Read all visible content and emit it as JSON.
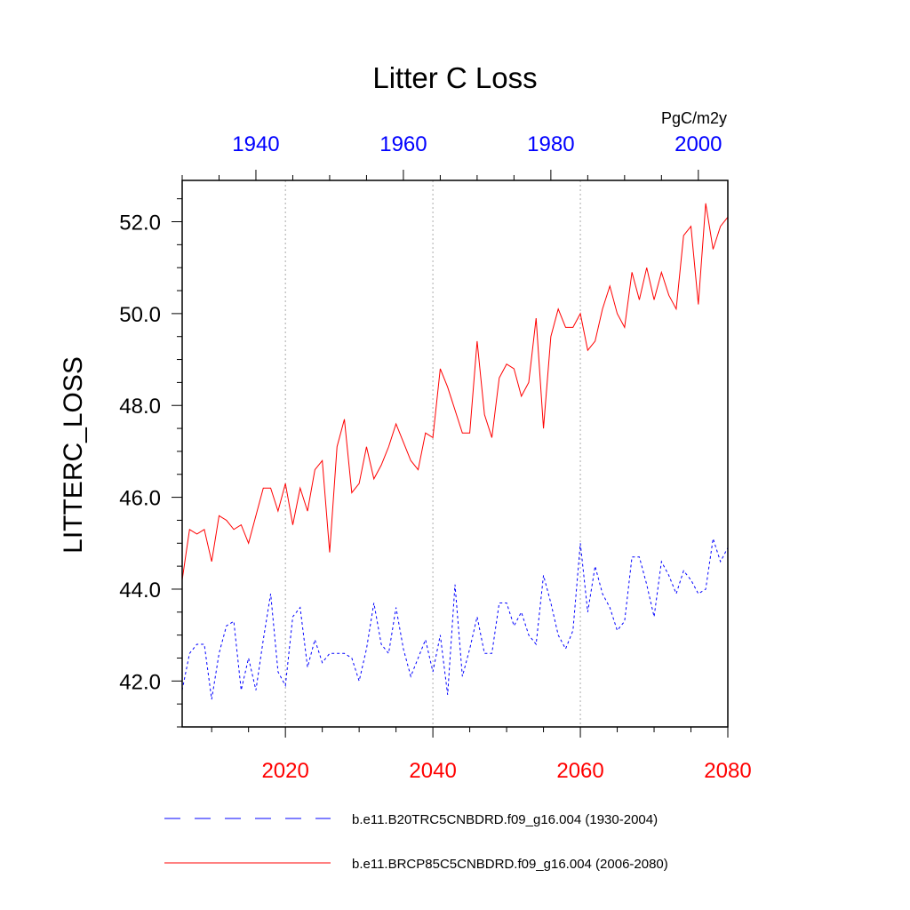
{
  "chart_data": {
    "type": "line",
    "title": "Litter C Loss",
    "units": "PgC/m2y",
    "ylabel": "LITTERC_LOSS",
    "ylim": [
      41.0,
      52.9
    ],
    "yticks": [
      42.0,
      44.0,
      46.0,
      48.0,
      50.0,
      52.0
    ],
    "ytick_labels": [
      "42.0",
      "44.0",
      "46.0",
      "48.0",
      "50.0",
      "52.0"
    ],
    "y_minor_step": 0.5,
    "x_bottom": {
      "range": [
        2006,
        2080
      ],
      "ticks": [
        2020,
        2040,
        2060,
        2080
      ],
      "tick_labels": [
        "2020",
        "2040",
        "2060",
        "2080"
      ],
      "minor_step": 5,
      "color": "#ff0000"
    },
    "x_top": {
      "range": [
        1930,
        2004
      ],
      "ticks": [
        1940,
        1960,
        1980,
        2000
      ],
      "tick_labels": [
        "1940",
        "1960",
        "1980",
        "2000"
      ],
      "minor_step": 5,
      "color": "#0000ff"
    },
    "gridlines_x": [
      2020,
      2040,
      2060
    ],
    "series": [
      {
        "name": "b.e11.B20TRC5CNBDRD.f09_g16.004 (1930-2004)",
        "axis": "top",
        "color": "#0000ff",
        "dash": "dashed",
        "x_start": 1930,
        "values": [
          41.8,
          42.6,
          42.8,
          42.8,
          41.6,
          42.6,
          43.2,
          43.3,
          41.8,
          42.5,
          41.8,
          42.9,
          43.9,
          42.2,
          41.9,
          43.4,
          43.6,
          42.3,
          42.9,
          42.4,
          42.6,
          42.6,
          42.6,
          42.5,
          42.0,
          42.7,
          43.7,
          42.8,
          42.6,
          43.6,
          42.7,
          42.1,
          42.5,
          42.9,
          42.2,
          43.0,
          41.7,
          44.1,
          42.1,
          42.7,
          43.4,
          42.6,
          42.6,
          43.7,
          43.7,
          43.2,
          43.5,
          43.0,
          42.8,
          44.3,
          43.7,
          43.0,
          42.7,
          43.1,
          45.0,
          43.5,
          44.5,
          43.9,
          43.6,
          43.1,
          43.3,
          44.7,
          44.7,
          44.1,
          43.4,
          44.6,
          44.3,
          43.9,
          44.4,
          44.2,
          43.9,
          44.0,
          45.1,
          44.6,
          44.9
        ]
      },
      {
        "name": "b.e11.BRCP85C5CNBDRD.f09_g16.004 (2006-2080)",
        "axis": "bottom",
        "color": "#ff0000",
        "dash": "solid",
        "x_start": 2006,
        "values": [
          44.2,
          45.3,
          45.2,
          45.3,
          44.6,
          45.6,
          45.5,
          45.3,
          45.4,
          45.0,
          45.6,
          46.2,
          46.2,
          45.7,
          46.3,
          45.4,
          46.2,
          45.7,
          46.6,
          46.8,
          44.8,
          47.1,
          47.7,
          46.1,
          46.3,
          47.1,
          46.4,
          46.7,
          47.1,
          47.6,
          47.2,
          46.8,
          46.6,
          47.4,
          47.3,
          48.8,
          48.4,
          47.9,
          47.4,
          47.4,
          49.4,
          47.8,
          47.3,
          48.6,
          48.9,
          48.8,
          48.2,
          48.5,
          49.9,
          47.5,
          49.5,
          50.1,
          49.7,
          49.7,
          50.0,
          49.2,
          49.4,
          50.1,
          50.6,
          50.0,
          49.7,
          50.9,
          50.3,
          51.0,
          50.3,
          50.9,
          50.4,
          50.1,
          51.7,
          51.9,
          50.2,
          52.4,
          51.4,
          51.9,
          52.1
        ]
      }
    ],
    "legend": {
      "placement": "bottom",
      "entries": [
        "b.e11.B20TRC5CNBDRD.f09_g16.004 (1930-2004)",
        "b.e11.BRCP85C5CNBDRD.f09_g16.004 (2006-2080)"
      ]
    }
  }
}
